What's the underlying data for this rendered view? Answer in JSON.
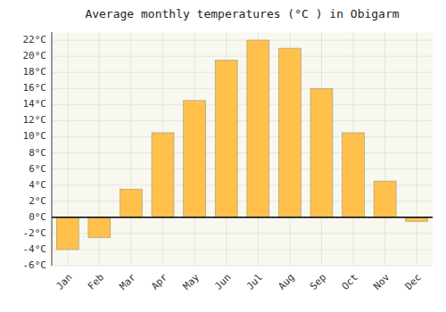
{
  "chart_data": {
    "type": "bar",
    "title": "Average monthly temperatures (°C ) in Obigarm",
    "categories": [
      "Jan",
      "Feb",
      "Mar",
      "Apr",
      "May",
      "Jun",
      "Jul",
      "Aug",
      "Sep",
      "Oct",
      "Nov",
      "Dec"
    ],
    "values": [
      -4.0,
      -2.5,
      3.5,
      10.5,
      14.5,
      19.5,
      22.0,
      21.0,
      16.0,
      10.5,
      4.5,
      -0.5
    ],
    "color": "#FFC04C",
    "ylim": [
      -6,
      23
    ],
    "yticks": [
      {
        "value": -6,
        "label": "-6°C"
      },
      {
        "value": -4,
        "label": "-4°C"
      },
      {
        "value": -2,
        "label": "-2°C"
      },
      {
        "value": 0,
        "label": "0°C"
      },
      {
        "value": 2,
        "label": "2°C"
      },
      {
        "value": 4,
        "label": "4°C"
      },
      {
        "value": 6,
        "label": "6°C"
      },
      {
        "value": 8,
        "label": "8°C"
      },
      {
        "value": 10,
        "label": "10°C"
      },
      {
        "value": 12,
        "label": "12°C"
      },
      {
        "value": 14,
        "label": "14°C"
      },
      {
        "value": 16,
        "label": "16°C"
      },
      {
        "value": 18,
        "label": "18°C"
      },
      {
        "value": 20,
        "label": "20°C"
      },
      {
        "value": 22,
        "label": "22°C"
      }
    ],
    "grid": true
  }
}
